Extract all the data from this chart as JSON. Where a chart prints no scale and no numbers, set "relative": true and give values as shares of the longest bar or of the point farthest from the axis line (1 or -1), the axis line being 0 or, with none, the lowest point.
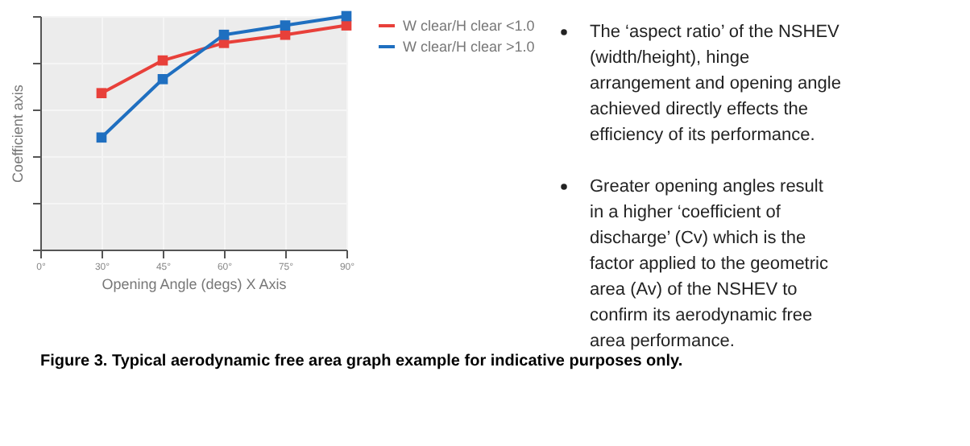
{
  "chart_data": {
    "type": "line",
    "xlabel": "Opening Angle (degs) X Axis",
    "ylabel": "Coefficient axis",
    "categories": [
      "0°",
      "30°",
      "45°",
      "60°",
      "75°",
      "90°"
    ],
    "relative": true,
    "series": [
      {
        "name": "W clear/H clear <1.0",
        "color": "#e8403a",
        "values": [
          null,
          0.67,
          0.81,
          0.885,
          0.92,
          0.96
        ]
      },
      {
        "name": "W clear/H clear >1.0",
        "color": "#1f6fc0",
        "values": [
          null,
          0.48,
          0.73,
          0.92,
          0.96,
          1.0
        ]
      }
    ],
    "marker": "square",
    "grid": true,
    "legend": "right",
    "annotations": [
      "The ‘aspect ratio’ of the NSHEV (width/height), hinge arrangement and opening angle achieved directly effects the efficiency of its performance.",
      "Greater opening angles result in a higher ‘coefficient of discharge’ (Cv) which is the factor applied to the geometric area (Av) of the NSHEV to confirm its aerodynamic free area performance.",
      "Figure 3. Typical aerodynamic free area graph example for indicative purposes only."
    ]
  }
}
